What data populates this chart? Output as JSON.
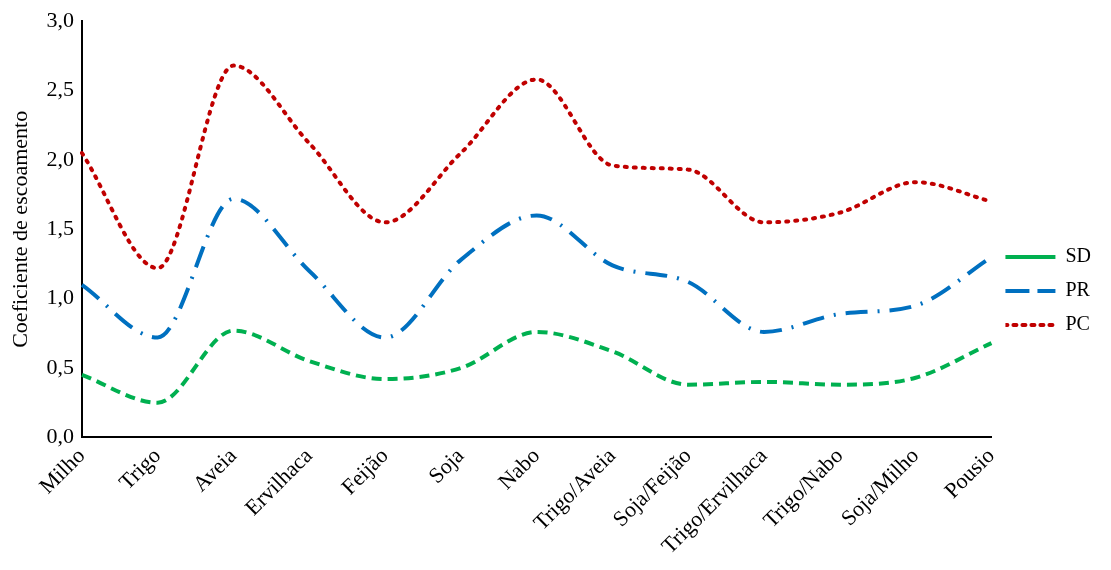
{
  "chart_data": {
    "type": "line",
    "ylabel": "Coeficiente de escoamento",
    "categories": [
      "Milho",
      "Trigo",
      "Aveia",
      "Ervilhaca",
      "Feijão",
      "Soja",
      "Nabo",
      "Trigo/Aveia",
      "Soja/Feijão",
      "Trigo/Ervilhaca",
      "Trigo/Nabo",
      "Soja/Milho",
      "Pousio"
    ],
    "series": [
      {
        "name": "SD",
        "color": "#00b050",
        "line_style": "dashed",
        "values": [
          0.45,
          0.25,
          0.77,
          0.55,
          0.42,
          0.5,
          0.76,
          0.62,
          0.38,
          0.4,
          0.38,
          0.43,
          0.68
        ]
      },
      {
        "name": "PR",
        "color": "#0070c0",
        "line_style": "dashdot",
        "values": [
          1.1,
          0.72,
          1.72,
          1.2,
          0.72,
          1.28,
          1.6,
          1.24,
          1.12,
          0.76,
          0.89,
          0.95,
          1.3
        ]
      },
      {
        "name": "PC",
        "color": "#c00000",
        "line_style": "dotted",
        "values": [
          2.05,
          1.22,
          2.68,
          2.12,
          1.55,
          2.05,
          2.58,
          1.96,
          1.93,
          1.55,
          1.62,
          1.84,
          1.7
        ]
      }
    ],
    "ylim": [
      0,
      3
    ],
    "yticks": [
      {
        "value": 0,
        "label": "0,0"
      },
      {
        "value": 0.5,
        "label": "0,5"
      },
      {
        "value": 1,
        "label": "1,0"
      },
      {
        "value": 1.5,
        "label": "1,5"
      },
      {
        "value": 2,
        "label": "2,0"
      },
      {
        "value": 2.5,
        "label": "2,5"
      },
      {
        "value": 3,
        "label": "3,0"
      }
    ],
    "grid": false,
    "legend": "right",
    "marker": "none"
  }
}
